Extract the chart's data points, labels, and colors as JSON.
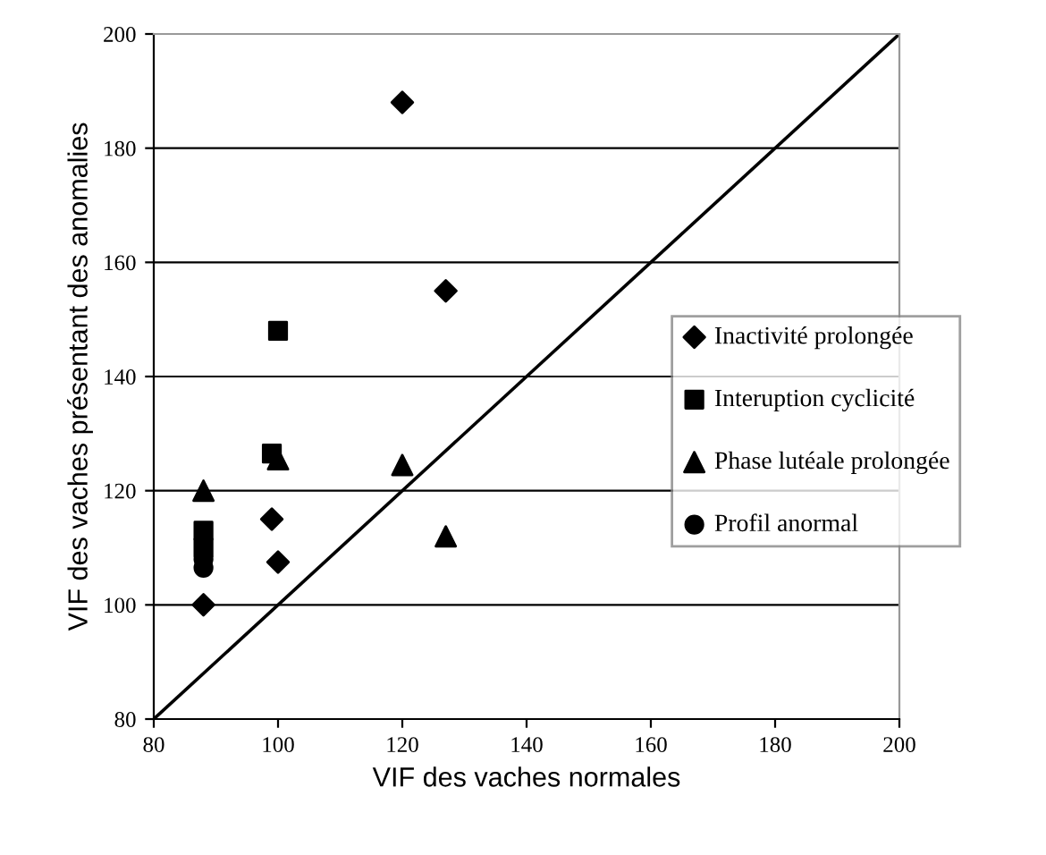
{
  "chart_data": {
    "type": "scatter",
    "xlabel": "VIF des vaches normales",
    "ylabel": "VIF des vaches présentant des anomalies",
    "xlim": [
      80,
      200
    ],
    "ylim": [
      80,
      200
    ],
    "xticks": [
      80,
      100,
      120,
      140,
      160,
      180,
      200
    ],
    "yticks": [
      80,
      100,
      120,
      140,
      160,
      180,
      200
    ],
    "grid": "y",
    "legend": "right",
    "series": [
      {
        "name": "Inactivité prolongée",
        "color": "#000000",
        "marker": "diamond",
        "x": [
          120,
          127,
          99,
          100,
          88
        ],
        "values": [
          188,
          155,
          115,
          107.5,
          100
        ]
      },
      {
        "name": "Interuption cyclicité",
        "color": "#000000",
        "marker": "square",
        "x": [
          88,
          88,
          99,
          100
        ],
        "values": [
          113,
          110,
          126.5,
          148
        ]
      },
      {
        "name": "Phase lutéale prolongée",
        "color": "#000000",
        "marker": "triangle",
        "x": [
          88,
          100,
          120,
          127
        ],
        "values": [
          120,
          125.5,
          124.5,
          112
        ]
      },
      {
        "name": "Profil anormal",
        "color": "#000000",
        "marker": "circle",
        "x": [
          88,
          88
        ],
        "values": [
          108,
          106.5
        ]
      },
      {
        "type": "line",
        "color": "#000000",
        "marker": "none",
        "x": [
          80,
          200
        ],
        "values": [
          80,
          200
        ]
      }
    ]
  }
}
